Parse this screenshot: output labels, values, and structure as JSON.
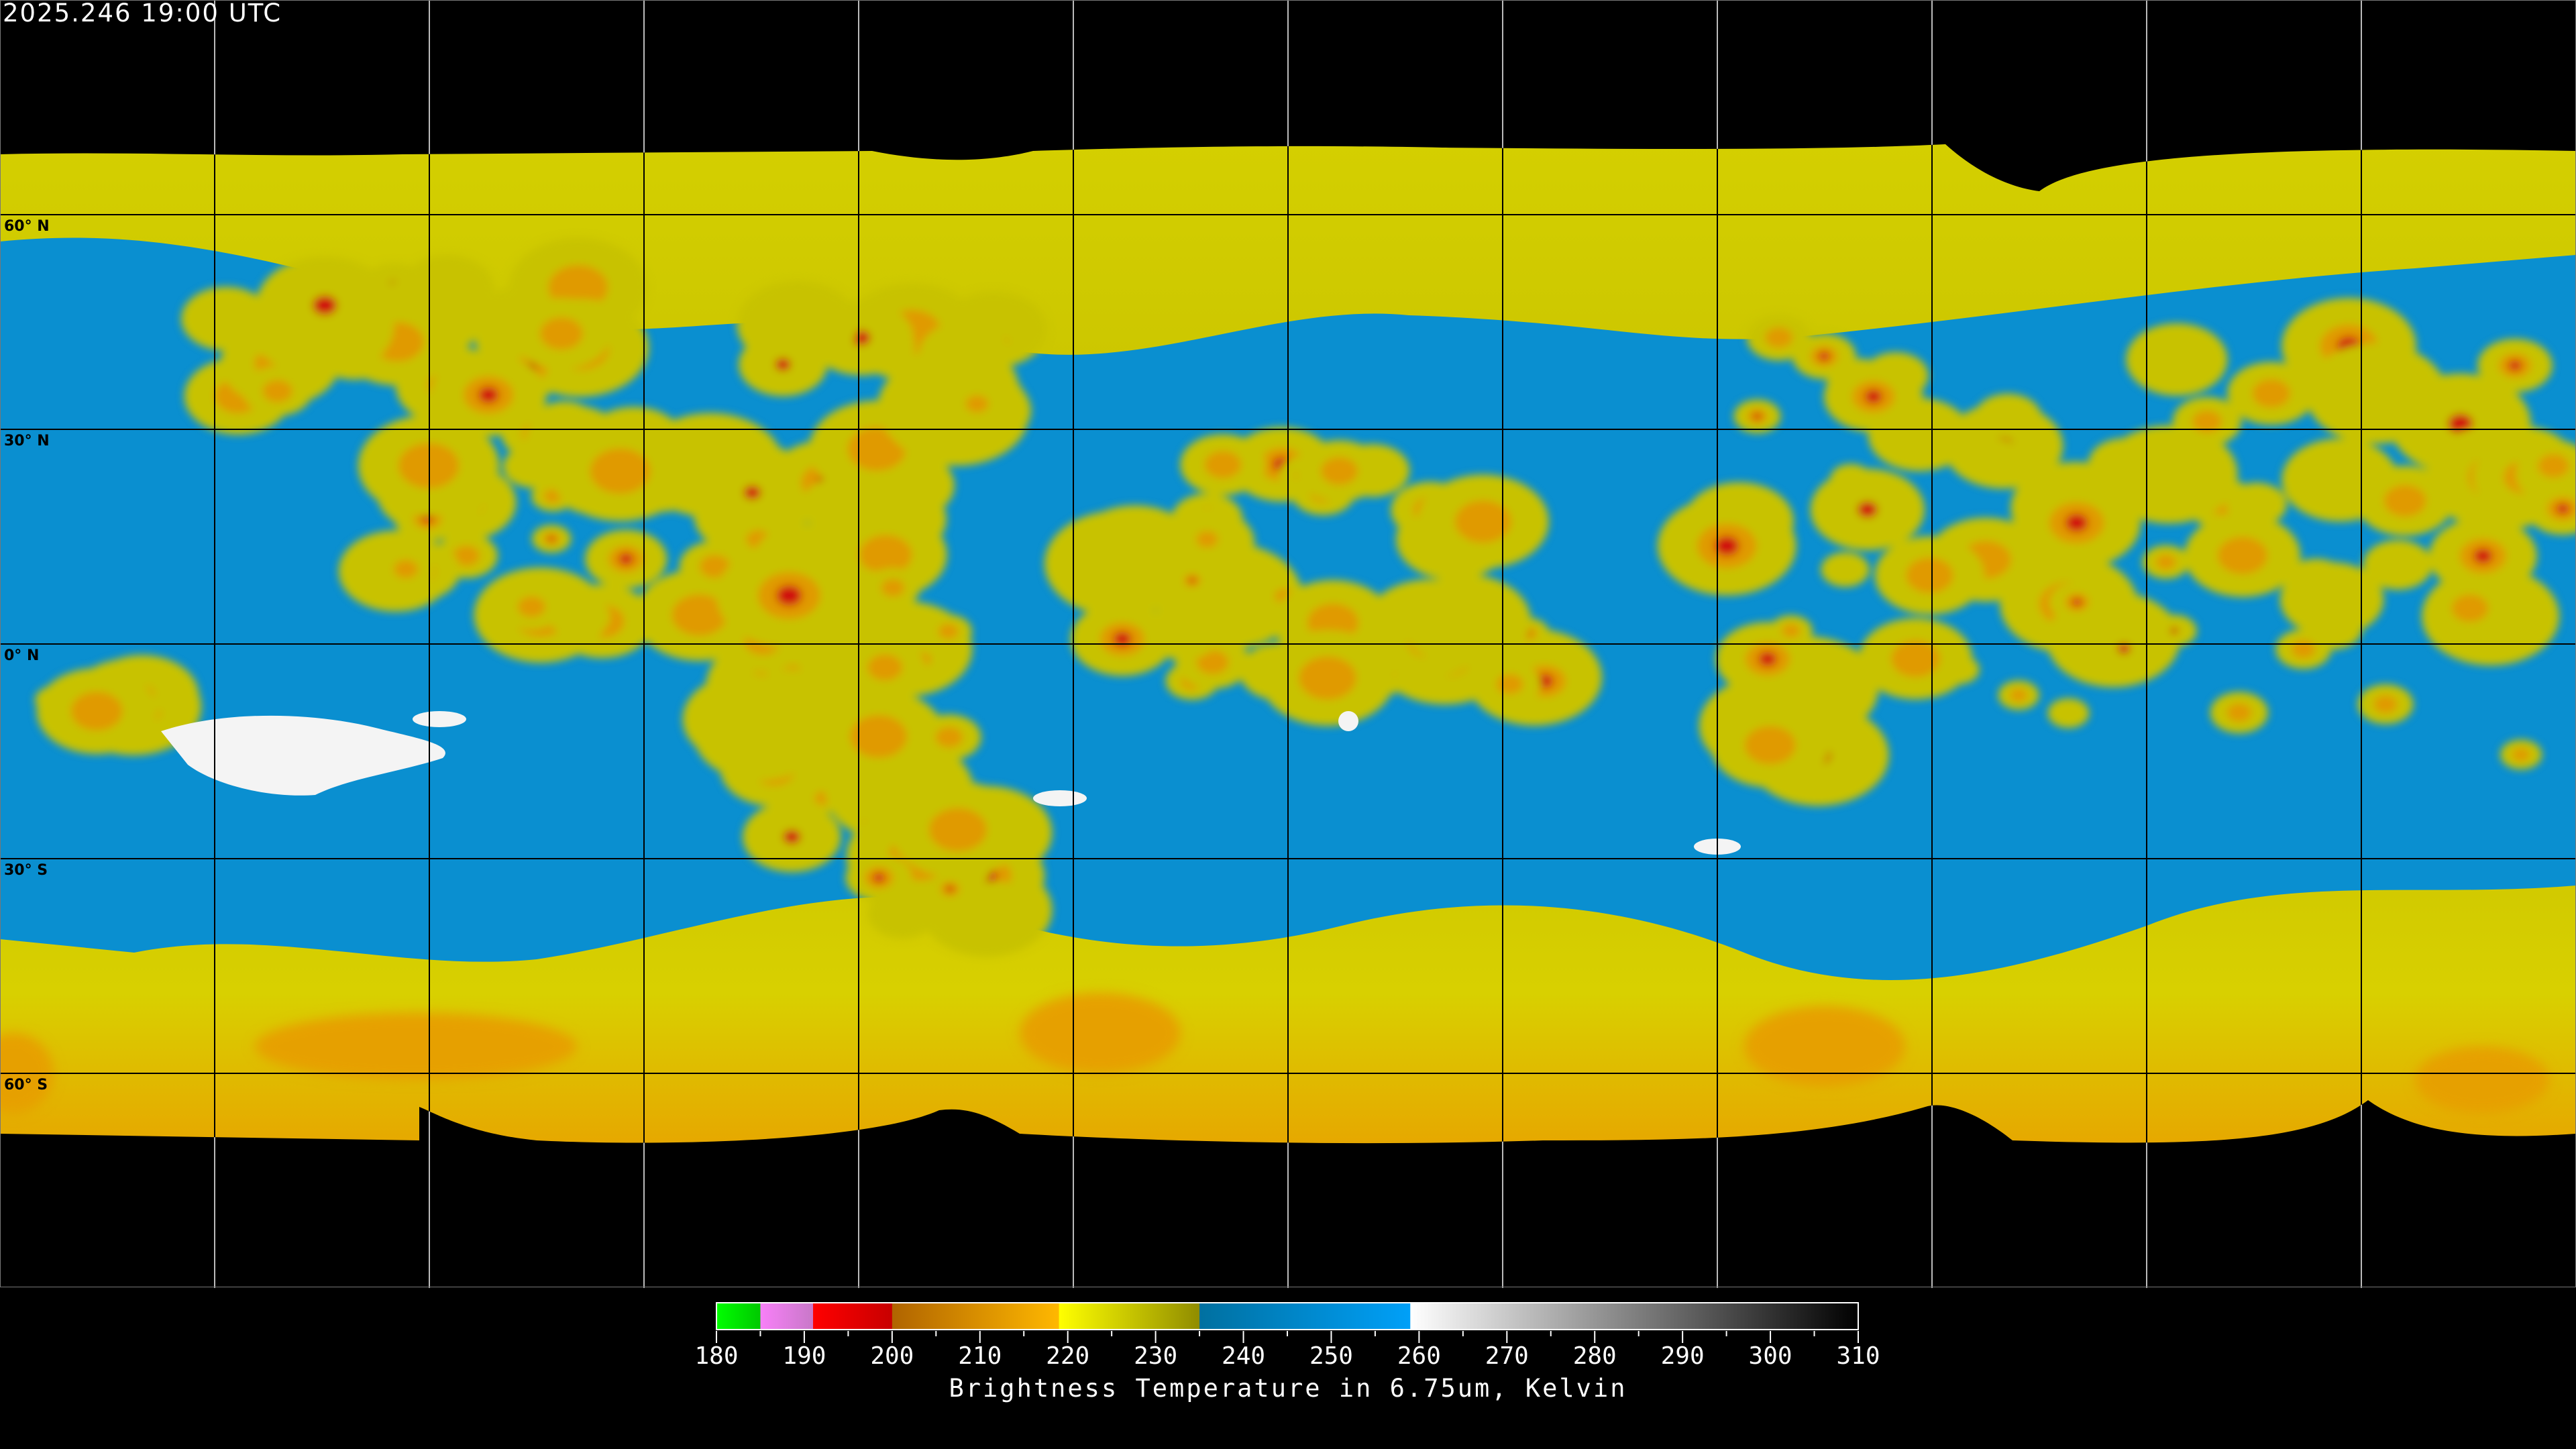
{
  "header": {
    "timestamp": "2025.246 19:00 UTC"
  },
  "map": {
    "projection": "equirectangular",
    "latitude_labels": [
      "60° N",
      "30° N",
      "0° N",
      "30° S",
      "60° S"
    ],
    "grid_interval_degrees": 30,
    "colors": {
      "moist_blue": "#0a8fd0",
      "dry_yellow": "#c8c400",
      "cold_orange": "#e0a000",
      "deep_red": "#d01010",
      "white_patch": "#f4f4f4"
    }
  },
  "colorbar": {
    "title": "Brightness Temperature in 6.75um, Kelvin",
    "min": 180,
    "max": 310,
    "tick_labels": [
      "180",
      "190",
      "200",
      "210",
      "220",
      "230",
      "240",
      "250",
      "260",
      "270",
      "280",
      "290",
      "300",
      "310"
    ],
    "segments": [
      {
        "from": 180,
        "to": 185,
        "start": "#00ff00",
        "end": "#00c800"
      },
      {
        "from": 185,
        "to": 191,
        "start": "#f880f8",
        "end": "#c878c8"
      },
      {
        "from": 191,
        "to": 200,
        "start": "#ff0000",
        "end": "#c80000"
      },
      {
        "from": 200,
        "to": 219,
        "start": "#b06400",
        "end": "#ffb800"
      },
      {
        "from": 219,
        "to": 235,
        "start": "#ffff00",
        "end": "#908c00"
      },
      {
        "from": 235,
        "to": 259,
        "start": "#0070a0",
        "end": "#00a0f8"
      },
      {
        "from": 259,
        "to": 310,
        "start": "#ffffff",
        "end": "#000000"
      }
    ]
  }
}
